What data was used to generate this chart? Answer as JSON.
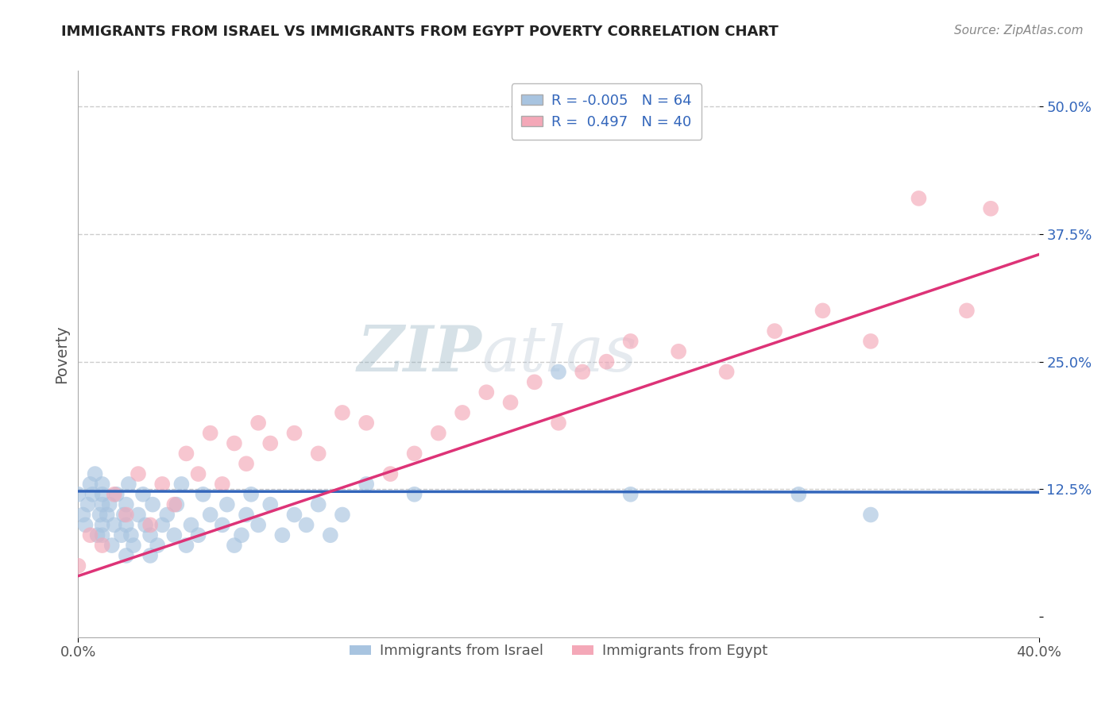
{
  "title": "IMMIGRANTS FROM ISRAEL VS IMMIGRANTS FROM EGYPT POVERTY CORRELATION CHART",
  "source": "Source: ZipAtlas.com",
  "ylabel": "Poverty",
  "yticks": [
    0.0,
    0.125,
    0.25,
    0.375,
    0.5
  ],
  "ytick_labels": [
    "",
    "12.5%",
    "25.0%",
    "37.5%",
    "50.0%"
  ],
  "xlim": [
    0.0,
    0.4
  ],
  "ylim": [
    -0.02,
    0.535
  ],
  "israel_R": -0.005,
  "israel_N": 64,
  "egypt_R": 0.497,
  "egypt_N": 40,
  "israel_color": "#a8c4e0",
  "egypt_color": "#f4a8b8",
  "israel_line_color": "#3366bb",
  "egypt_line_color": "#dd3377",
  "israel_x": [
    0.0,
    0.002,
    0.003,
    0.004,
    0.005,
    0.006,
    0.007,
    0.008,
    0.009,
    0.01,
    0.01,
    0.01,
    0.01,
    0.01,
    0.012,
    0.013,
    0.014,
    0.015,
    0.016,
    0.018,
    0.019,
    0.02,
    0.02,
    0.02,
    0.021,
    0.022,
    0.023,
    0.025,
    0.027,
    0.028,
    0.03,
    0.03,
    0.031,
    0.033,
    0.035,
    0.037,
    0.04,
    0.041,
    0.043,
    0.045,
    0.047,
    0.05,
    0.052,
    0.055,
    0.06,
    0.062,
    0.065,
    0.068,
    0.07,
    0.072,
    0.075,
    0.08,
    0.085,
    0.09,
    0.095,
    0.1,
    0.105,
    0.11,
    0.12,
    0.14,
    0.2,
    0.23,
    0.3,
    0.33
  ],
  "israel_y": [
    0.12,
    0.1,
    0.09,
    0.11,
    0.13,
    0.12,
    0.14,
    0.08,
    0.1,
    0.11,
    0.13,
    0.12,
    0.09,
    0.08,
    0.1,
    0.11,
    0.07,
    0.09,
    0.12,
    0.08,
    0.1,
    0.06,
    0.09,
    0.11,
    0.13,
    0.08,
    0.07,
    0.1,
    0.12,
    0.09,
    0.06,
    0.08,
    0.11,
    0.07,
    0.09,
    0.1,
    0.08,
    0.11,
    0.13,
    0.07,
    0.09,
    0.08,
    0.12,
    0.1,
    0.09,
    0.11,
    0.07,
    0.08,
    0.1,
    0.12,
    0.09,
    0.11,
    0.08,
    0.1,
    0.09,
    0.11,
    0.08,
    0.1,
    0.13,
    0.12,
    0.24,
    0.12,
    0.12,
    0.1
  ],
  "egypt_x": [
    0.0,
    0.005,
    0.01,
    0.015,
    0.02,
    0.025,
    0.03,
    0.035,
    0.04,
    0.045,
    0.05,
    0.055,
    0.06,
    0.065,
    0.07,
    0.075,
    0.08,
    0.09,
    0.1,
    0.11,
    0.12,
    0.13,
    0.14,
    0.15,
    0.16,
    0.17,
    0.18,
    0.19,
    0.2,
    0.21,
    0.22,
    0.23,
    0.25,
    0.27,
    0.29,
    0.31,
    0.33,
    0.35,
    0.37,
    0.38
  ],
  "egypt_y": [
    0.05,
    0.08,
    0.07,
    0.12,
    0.1,
    0.14,
    0.09,
    0.13,
    0.11,
    0.16,
    0.14,
    0.18,
    0.13,
    0.17,
    0.15,
    0.19,
    0.17,
    0.18,
    0.16,
    0.2,
    0.19,
    0.14,
    0.16,
    0.18,
    0.2,
    0.22,
    0.21,
    0.23,
    0.19,
    0.24,
    0.25,
    0.27,
    0.26,
    0.24,
    0.28,
    0.3,
    0.27,
    0.41,
    0.3,
    0.4
  ],
  "israel_line_y_start": 0.123,
  "israel_line_y_end": 0.122,
  "egypt_line_y_start": 0.04,
  "egypt_line_y_end": 0.355
}
